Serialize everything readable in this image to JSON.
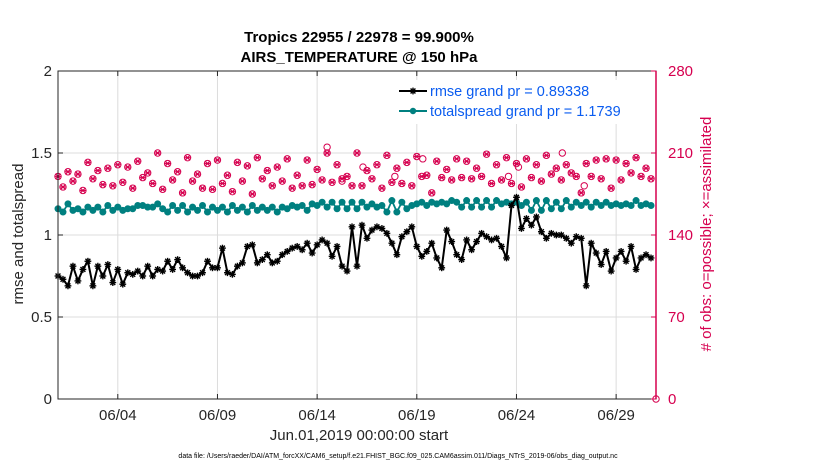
{
  "colors": {
    "rmse": "#000000",
    "spread": "#008080",
    "obs": "#d6004f",
    "legend_text": "#0a5cf0",
    "grid": "#dcdcdc",
    "axis": "#262626"
  },
  "chart_data": {
    "type": "line",
    "title_line1": "Tropics 22955 / 22978 = 99.900%",
    "title_line2": "AIRS_TEMPERATURE @ 150 hPa",
    "xlabel": "Jun.01,2019 00:00:00 start",
    "ylabel": "rmse and totalspread",
    "ylabel_right": "# of obs: o=possible; ×=assimilated",
    "xlim": [
      1,
      31
    ],
    "ylim": [
      0,
      2
    ],
    "ylim_right": [
      0,
      280
    ],
    "xticks": [
      4,
      9,
      14,
      19,
      24,
      29
    ],
    "xtick_labels": [
      "06/04",
      "06/09",
      "06/14",
      "06/19",
      "06/24",
      "06/29"
    ],
    "yticks": [
      0,
      0.5,
      1,
      1.5,
      2
    ],
    "ytick_labels": [
      "0",
      "0.5",
      "1",
      "1.5",
      "2"
    ],
    "yticks_right": [
      0,
      70,
      140,
      210,
      280
    ],
    "ytick_labels_right": [
      "0",
      "70",
      "140",
      "210",
      "280"
    ],
    "grid": true,
    "legend_position": "top-right",
    "x": [
      1.0,
      1.25,
      1.5,
      1.75,
      2.0,
      2.25,
      2.5,
      2.75,
      3.0,
      3.25,
      3.5,
      3.75,
      4.0,
      4.25,
      4.5,
      4.75,
      5.0,
      5.25,
      5.5,
      5.75,
      6.0,
      6.25,
      6.5,
      6.75,
      7.0,
      7.25,
      7.5,
      7.75,
      8.0,
      8.25,
      8.5,
      8.75,
      9.0,
      9.25,
      9.5,
      9.75,
      10.0,
      10.25,
      10.5,
      10.75,
      11.0,
      11.25,
      11.5,
      11.75,
      12.0,
      12.25,
      12.5,
      12.75,
      13.0,
      13.25,
      13.5,
      13.75,
      14.0,
      14.25,
      14.5,
      14.75,
      15.0,
      15.25,
      15.5,
      15.75,
      16.0,
      16.25,
      16.5,
      16.75,
      17.0,
      17.25,
      17.5,
      17.75,
      18.0,
      18.25,
      18.5,
      18.75,
      19.0,
      19.25,
      19.5,
      19.75,
      20.0,
      20.25,
      20.5,
      20.75,
      21.0,
      21.25,
      21.5,
      21.75,
      22.0,
      22.25,
      22.5,
      22.75,
      23.0,
      23.25,
      23.5,
      23.75,
      24.0,
      24.25,
      24.5,
      24.75,
      25.0,
      25.25,
      25.5,
      25.75,
      26.0,
      26.25,
      26.5,
      26.75,
      27.0,
      27.25,
      27.5,
      27.75,
      28.0,
      28.25,
      28.5,
      28.75,
      29.0,
      29.25,
      29.5,
      29.75,
      30.0,
      30.25,
      30.5,
      30.75
    ],
    "series": [
      {
        "name": "rmse grand pr = 0.89338",
        "axis": "left",
        "values": [
          0.75,
          0.73,
          0.69,
          0.81,
          0.72,
          0.79,
          0.84,
          0.69,
          0.81,
          0.75,
          0.82,
          0.71,
          0.79,
          0.7,
          0.77,
          0.76,
          0.78,
          0.75,
          0.81,
          0.75,
          0.79,
          0.78,
          0.84,
          0.79,
          0.85,
          0.8,
          0.77,
          0.75,
          0.75,
          0.77,
          0.84,
          0.8,
          0.8,
          0.92,
          0.77,
          0.76,
          0.81,
          0.83,
          0.93,
          0.94,
          0.83,
          0.85,
          0.88,
          0.83,
          0.84,
          0.88,
          0.9,
          0.92,
          0.93,
          0.91,
          0.95,
          0.89,
          0.94,
          0.97,
          0.95,
          0.87,
          0.93,
          0.81,
          0.78,
          1.05,
          0.81,
          1.06,
          0.98,
          1.03,
          1.05,
          1.04,
          1.01,
          0.95,
          0.88,
          0.99,
          1.02,
          1.05,
          0.93,
          0.87,
          0.9,
          0.95,
          0.86,
          0.8,
          1.03,
          0.96,
          0.88,
          0.85,
          0.97,
          0.91,
          0.96,
          1.01,
          0.99,
          0.97,
          0.98,
          0.93,
          0.86,
          1.18,
          1.23,
          1.04,
          1.1,
          1.06,
          1.11,
          1.02,
          0.98,
          1.01,
          1.0,
          1.0,
          0.98,
          0.95,
          0.99,
          0.98,
          0.69,
          0.95,
          0.89,
          0.82,
          0.9,
          0.78,
          0.86,
          0.9,
          0.84,
          0.93,
          0.79,
          0.86,
          0.88,
          0.86
        ]
      },
      {
        "name": "totalspread grand pr = 1.1739",
        "axis": "left",
        "values": [
          1.16,
          1.14,
          1.19,
          1.15,
          1.16,
          1.14,
          1.17,
          1.15,
          1.17,
          1.14,
          1.18,
          1.15,
          1.17,
          1.15,
          1.16,
          1.16,
          1.18,
          1.18,
          1.17,
          1.17,
          1.19,
          1.16,
          1.14,
          1.18,
          1.15,
          1.18,
          1.14,
          1.17,
          1.15,
          1.18,
          1.14,
          1.17,
          1.15,
          1.17,
          1.14,
          1.18,
          1.15,
          1.17,
          1.14,
          1.18,
          1.15,
          1.17,
          1.15,
          1.17,
          1.14,
          1.17,
          1.16,
          1.18,
          1.17,
          1.18,
          1.15,
          1.19,
          1.18,
          1.2,
          1.17,
          1.2,
          1.16,
          1.2,
          1.16,
          1.2,
          1.16,
          1.2,
          1.17,
          1.19,
          1.17,
          1.18,
          1.14,
          1.21,
          1.14,
          1.2,
          1.16,
          1.18,
          1.19,
          1.2,
          1.18,
          1.2,
          1.19,
          1.2,
          1.19,
          1.21,
          1.2,
          1.17,
          1.21,
          1.17,
          1.21,
          1.17,
          1.21,
          1.17,
          1.21,
          1.19,
          1.2,
          1.19,
          1.2,
          1.18,
          1.2,
          1.15,
          1.21,
          1.15,
          1.21,
          1.16,
          1.2,
          1.16,
          1.21,
          1.17,
          1.2,
          1.18,
          1.2,
          1.17,
          1.2,
          1.18,
          1.2,
          1.18,
          1.19,
          1.18,
          1.19,
          1.18,
          1.21,
          1.18,
          1.19,
          1.18
        ]
      },
      {
        "name": "# of obs possible",
        "axis": "right",
        "marker": "o",
        "values": [
          190,
          181,
          194,
          186,
          192,
          178,
          202,
          188,
          195,
          183,
          197,
          182,
          200,
          185,
          198,
          180,
          203,
          189,
          193,
          184,
          210,
          179,
          201,
          187,
          194,
          176,
          206,
          186,
          192,
          180,
          201,
          179,
          204,
          184,
          191,
          177,
          202,
          186,
          199,
          175,
          206,
          188,
          195,
          182,
          198,
          186,
          205,
          180,
          191,
          182,
          204,
          183,
          196,
          187,
          210,
          185,
          200,
          188,
          190,
          182,
          210,
          182,
          195,
          188,
          200,
          180,
          208,
          185,
          197,
          184,
          202,
          182,
          207,
          190,
          191,
          176,
          203,
          189,
          196,
          187,
          205,
          189,
          203,
          188,
          197,
          190,
          209,
          184,
          200,
          187,
          206,
          184,
          201,
          181,
          205,
          189,
          200,
          186,
          208,
          192,
          197,
          187,
          200,
          193,
          190,
          176,
          201,
          190,
          204,
          188,
          205,
          180,
          204,
          187,
          201,
          193,
          206,
          190,
          197,
          188
        ]
      },
      {
        "name": "# of obs assimilated",
        "axis": "right",
        "marker": "x",
        "values": [
          190,
          181,
          194,
          186,
          192,
          178,
          202,
          188,
          195,
          183,
          197,
          182,
          200,
          185,
          198,
          180,
          203,
          189,
          193,
          184,
          210,
          179,
          201,
          187,
          194,
          176,
          206,
          186,
          192,
          180,
          201,
          179,
          204,
          184,
          191,
          177,
          202,
          186,
          199,
          175,
          206,
          188,
          195,
          182,
          198,
          186,
          205,
          180,
          191,
          182,
          204,
          183,
          196,
          187,
          210,
          185,
          200,
          188,
          190,
          182,
          210,
          182,
          195,
          188,
          200,
          180,
          208,
          185,
          197,
          184,
          202,
          182,
          207,
          190,
          191,
          176,
          203,
          189,
          196,
          187,
          205,
          189,
          203,
          188,
          197,
          190,
          209,
          184,
          200,
          187,
          206,
          184,
          201,
          181,
          205,
          189,
          200,
          186,
          208,
          192,
          197,
          187,
          200,
          193,
          190,
          176,
          201,
          190,
          204,
          188,
          205,
          180,
          204,
          187,
          201,
          193,
          206,
          190,
          197,
          188
        ]
      }
    ],
    "annotations": [
      {
        "x": 14.5,
        "y_right": 215,
        "marker": "o"
      },
      {
        "x": 15.25,
        "y_right": 186,
        "marker": "o"
      },
      {
        "x": 16.3,
        "y_right": 198,
        "marker": "o"
      },
      {
        "x": 17.9,
        "y_right": 190,
        "marker": "o"
      },
      {
        "x": 19.3,
        "y_right": 205,
        "marker": "o"
      },
      {
        "x": 23.6,
        "y_right": 190,
        "marker": "o"
      },
      {
        "x": 24.1,
        "y_right": 198,
        "marker": "o"
      },
      {
        "x": 26.3,
        "y_right": 210,
        "marker": "o"
      },
      {
        "x": 27.4,
        "y_right": 182,
        "marker": "o"
      },
      {
        "x": 31,
        "y_right": 0,
        "marker": "o"
      }
    ],
    "footer": "data file: /Users/raeder/DAI/ATM_forcXX/CAM6_setup/f.e21.FHIST_BGC.f09_025.CAM6assim.011/Diags_NTrS_2019-06/obs_diag_output.nc"
  }
}
